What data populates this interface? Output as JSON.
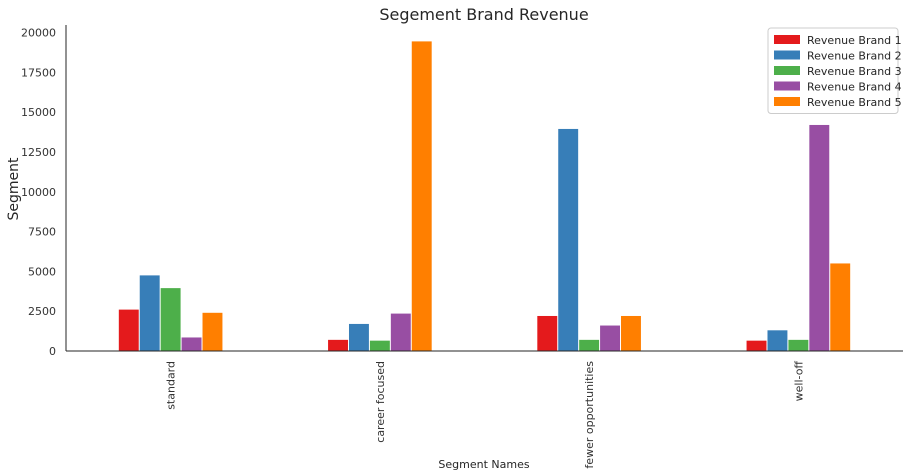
{
  "chart_data": {
    "type": "bar",
    "title": "Segement Brand Revenue",
    "xlabel": "Segment Names",
    "ylabel": "Segment",
    "categories": [
      "standard",
      "career focused",
      "fewer opportunities",
      "well-off"
    ],
    "series": [
      {
        "name": "Revenue Brand 1",
        "color": "#e41a1c",
        "values": [
          2600,
          700,
          2200,
          650
        ]
      },
      {
        "name": "Revenue Brand 2",
        "color": "#377eb8",
        "values": [
          4750,
          1700,
          13950,
          1300
        ]
      },
      {
        "name": "Revenue Brand 3",
        "color": "#4daf4a",
        "values": [
          3950,
          650,
          700,
          700
        ]
      },
      {
        "name": "Revenue Brand 4",
        "color": "#984ea3",
        "values": [
          850,
          2350,
          1600,
          14200
        ]
      },
      {
        "name": "Revenue Brand 5",
        "color": "#ff7f00",
        "values": [
          2400,
          19450,
          2200,
          5500
        ]
      }
    ],
    "yticks": [
      0,
      2500,
      5000,
      7500,
      10000,
      12500,
      15000,
      17500,
      20000
    ],
    "ylim": [
      0,
      20480
    ],
    "legend_position": "top-right",
    "grid": false
  }
}
